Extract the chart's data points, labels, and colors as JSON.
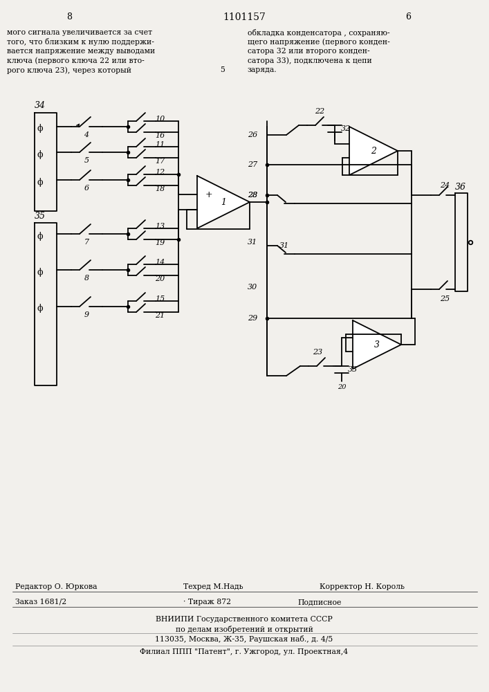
{
  "bg_color": "#f2f0ec",
  "title_text": "1101157",
  "page_left": "8",
  "page_right": "6",
  "header_left_lines": [
    "мого сигнала увеличивается за счет",
    "того, что близким к нулю поддержи-",
    "вается напряжение между выводами",
    "ключа (первого ключа 22 или вто-",
    "рого ключа 23), через который"
  ],
  "header_right_lines": [
    "обкладка конденсатора , сохраняю-",
    "щего напряжение (первого конден-",
    "сатора 32 или второго конден-",
    "сатора 33), подключена к цепи"
  ],
  "header_num": "5",
  "header_num_word": "заряда.",
  "footer_editor": "Редактор О. Юркова",
  "footer_tech": "Техред М.Надь",
  "footer_corrector": "Корректор Н. Король",
  "footer_order": "Заказ 1681/2",
  "footer_edition": "Тираж 872",
  "footer_subscription": "Подписное",
  "footer_org1": "ВНИИПИ Государственного комитета СССР",
  "footer_org2": "по делам изобретений и открытий",
  "footer_address": "113035, Москва, Ж-35, Раушская наб., д. 4/5",
  "footer_branch": "Филиал ППП \"Патент\", г. Ужгород, ул. Проектная,4"
}
